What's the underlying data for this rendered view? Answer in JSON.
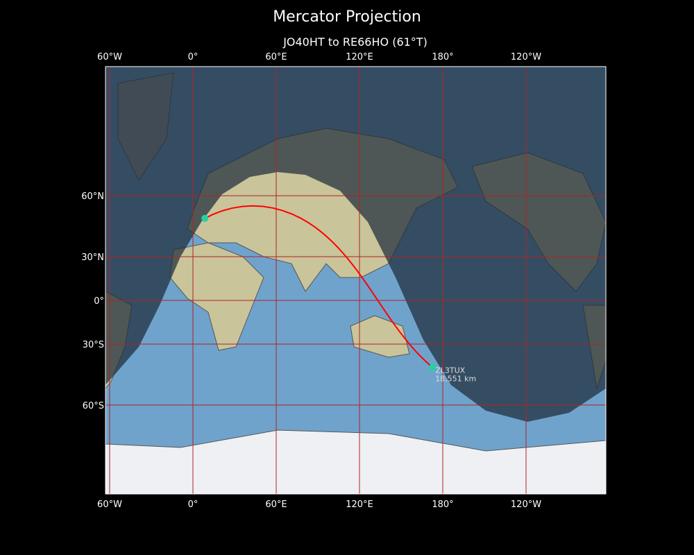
{
  "title": "Mercator Projection",
  "subtitle": "JO40HT to RE66HO (61°T)",
  "lon_ticks": [
    {
      "lon": -60,
      "label": "60°W"
    },
    {
      "lon": 0,
      "label": "0°"
    },
    {
      "lon": 60,
      "label": "60°E"
    },
    {
      "lon": 120,
      "label": "120°E"
    },
    {
      "lon": 180,
      "label": "180°"
    },
    {
      "lon": 240,
      "label": "120°W"
    }
  ],
  "lat_ticks": [
    {
      "lat": 60,
      "label": "60°N"
    },
    {
      "lat": 30,
      "label": "30°N"
    },
    {
      "lat": 0,
      "label": "0°"
    },
    {
      "lat": -30,
      "label": "30°S"
    },
    {
      "lat": -60,
      "label": "60°S"
    }
  ],
  "route": {
    "from": {
      "locator": "JO40HT",
      "lat": 50.8,
      "lon": 8.6
    },
    "to": {
      "locator": "RE66HO",
      "lat": -43.4,
      "lon": 172.6,
      "callsign": "ZL3TUX",
      "distance": "18,551 km"
    },
    "bearing": "61°T"
  },
  "colors": {
    "route": "#ff0000",
    "marker": "#1ed4a0",
    "grid": "#b22222",
    "night": "#1e2c3a",
    "ocean": "#6fa3cc"
  }
}
